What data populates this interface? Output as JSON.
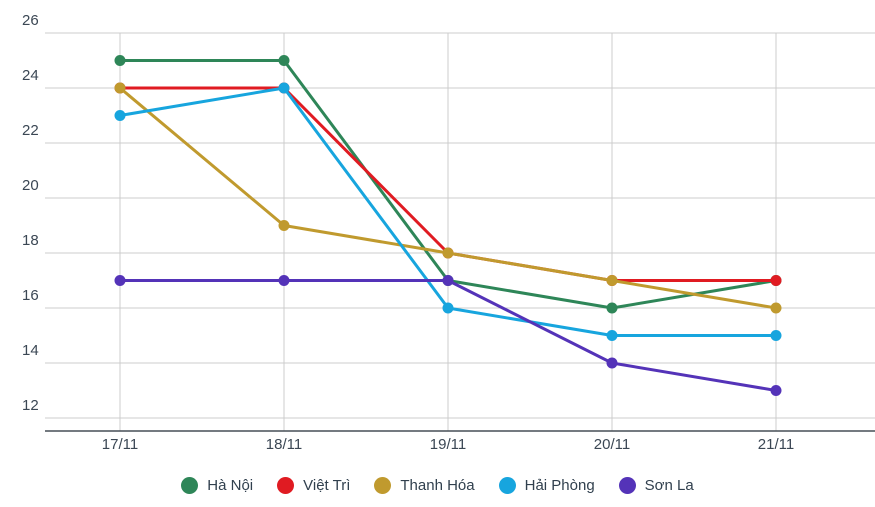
{
  "chart_data": {
    "type": "line",
    "title": "",
    "xlabel": "",
    "ylabel": "",
    "categories": [
      "17/11",
      "18/11",
      "19/11",
      "20/11",
      "21/11"
    ],
    "series": [
      {
        "name": "Hà Nội",
        "color": "#2e8658",
        "values": [
          25,
          25,
          17,
          16,
          17
        ]
      },
      {
        "name": "Việt Trì",
        "color": "#e01b22",
        "values": [
          24,
          24,
          18,
          17,
          17
        ]
      },
      {
        "name": "Thanh Hóa",
        "color": "#c09a2e",
        "values": [
          24,
          19,
          18,
          17,
          16
        ]
      },
      {
        "name": "Hải Phòng",
        "color": "#17a5de",
        "values": [
          23,
          24,
          16,
          15,
          15
        ]
      },
      {
        "name": "Sơn La",
        "color": "#5433b8",
        "values": [
          17,
          17,
          17,
          14,
          13
        ]
      }
    ],
    "ylim": [
      12,
      26
    ],
    "yticks": [
      26,
      24,
      22,
      20,
      18,
      16,
      14,
      12
    ],
    "grid": true,
    "legend_position": "bottom",
    "style": {
      "gridline_color": "#cccccc",
      "baseline_color": "#474f56",
      "axis_text_color": "#3b4754",
      "legend_text_color": "#31404e",
      "background": "#ffffff"
    }
  }
}
